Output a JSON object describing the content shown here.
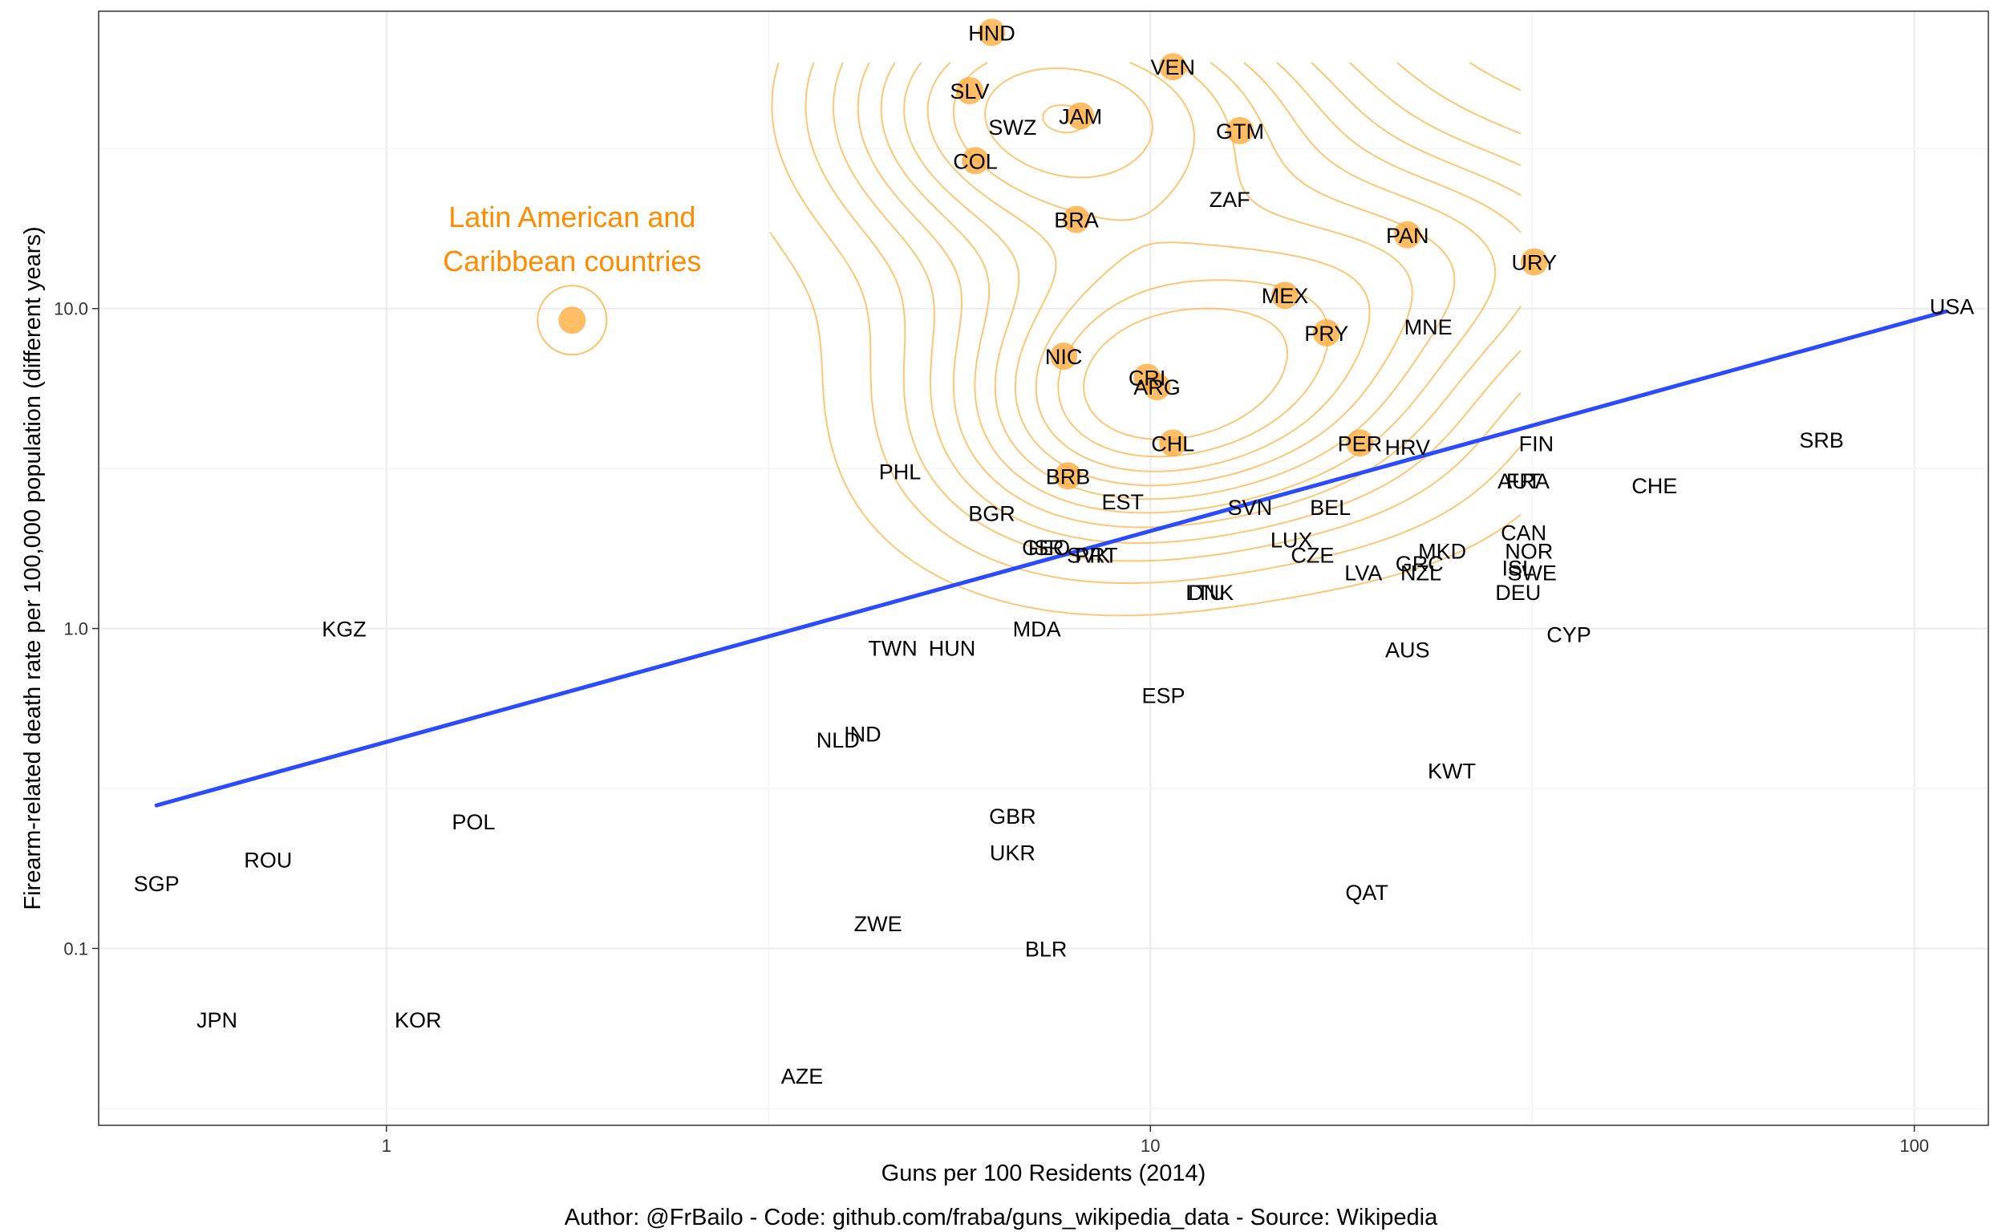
{
  "chart_data": {
    "type": "scatter",
    "xlabel": "Guns per 100 Residents (2014)",
    "ylabel": "Firearm-related death rate per 100,000 population (different years)",
    "caption": "Author: @FrBailo - Code: github.com/fraba/guns_wikipedia_data - Source: Wikipedia",
    "x_scale": "log",
    "y_scale": "log",
    "xlim": [
      0.42,
      125
    ],
    "ylim": [
      0.028,
      85
    ],
    "x_ticks": [
      {
        "value": 1,
        "label": "1"
      },
      {
        "value": 10,
        "label": "10"
      },
      {
        "value": 100,
        "label": "100"
      }
    ],
    "y_ticks": [
      {
        "value": 0.1,
        "label": "0.1"
      },
      {
        "value": 1,
        "label": "1.0"
      },
      {
        "value": 10,
        "label": "10.0"
      }
    ],
    "grid": true,
    "annotation": {
      "lines": [
        "Latin American and",
        "Caribbean countries"
      ],
      "marker_x": 1.75,
      "marker_y": 9.2
    },
    "regression_line": {
      "x": [
        0.5,
        110
      ],
      "y": [
        0.28,
        9.8
      ]
    },
    "colors": {
      "highlight": "#ffa733",
      "contour": "#ffb347",
      "annotation": "#ff8c00",
      "trend": "#2b4bff",
      "text": "#000000"
    },
    "countries": [
      {
        "code": "HND",
        "x": 6.2,
        "y": 73,
        "latam": true
      },
      {
        "code": "VEN",
        "x": 10.7,
        "y": 57,
        "latam": true
      },
      {
        "code": "SLV",
        "x": 5.8,
        "y": 48,
        "latam": true
      },
      {
        "code": "JAM",
        "x": 8.1,
        "y": 40,
        "latam": true
      },
      {
        "code": "SWZ",
        "x": 6.6,
        "y": 37
      },
      {
        "code": "GTM",
        "x": 13.1,
        "y": 36,
        "latam": true
      },
      {
        "code": "COL",
        "x": 5.9,
        "y": 29,
        "latam": true
      },
      {
        "code": "ZAF",
        "x": 12.7,
        "y": 22
      },
      {
        "code": "BRA",
        "x": 8.0,
        "y": 19,
        "latam": true
      },
      {
        "code": "PAN",
        "x": 21.7,
        "y": 17,
        "latam": true
      },
      {
        "code": "URY",
        "x": 31.8,
        "y": 14,
        "latam": true
      },
      {
        "code": "MEX",
        "x": 15.0,
        "y": 11,
        "latam": true
      },
      {
        "code": "USA",
        "x": 112,
        "y": 10.2
      },
      {
        "code": "PRY",
        "x": 17.0,
        "y": 8.4,
        "latam": true
      },
      {
        "code": "MNE",
        "x": 23.1,
        "y": 8.8
      },
      {
        "code": "NIC",
        "x": 7.7,
        "y": 7.1,
        "latam": true
      },
      {
        "code": "CRI",
        "x": 9.9,
        "y": 6.1,
        "latam": true
      },
      {
        "code": "ARG",
        "x": 10.2,
        "y": 5.7,
        "latam": true
      },
      {
        "code": "CHL",
        "x": 10.7,
        "y": 3.8,
        "latam": true
      },
      {
        "code": "PER",
        "x": 18.8,
        "y": 3.8,
        "latam": true
      },
      {
        "code": "HRV",
        "x": 21.7,
        "y": 3.7
      },
      {
        "code": "FIN",
        "x": 32.0,
        "y": 3.8
      },
      {
        "code": "SRB",
        "x": 75.6,
        "y": 3.9
      },
      {
        "code": "PHL",
        "x": 4.7,
        "y": 3.1
      },
      {
        "code": "BRB",
        "x": 7.8,
        "y": 3.0,
        "latam": true
      },
      {
        "code": "AUT",
        "x": 30.4,
        "y": 2.9
      },
      {
        "code": "FRA",
        "x": 31.2,
        "y": 2.9
      },
      {
        "code": "CHE",
        "x": 45.7,
        "y": 2.8
      },
      {
        "code": "EST",
        "x": 9.2,
        "y": 2.5
      },
      {
        "code": "SVN",
        "x": 13.5,
        "y": 2.4
      },
      {
        "code": "BEL",
        "x": 17.2,
        "y": 2.4
      },
      {
        "code": "BGR",
        "x": 6.2,
        "y": 2.3
      },
      {
        "code": "CAN",
        "x": 30.8,
        "y": 2.0
      },
      {
        "code": "LUX",
        "x": 15.3,
        "y": 1.9
      },
      {
        "code": "CZE",
        "x": 16.3,
        "y": 1.7
      },
      {
        "code": "MKD",
        "x": 24.1,
        "y": 1.75
      },
      {
        "code": "NOR",
        "x": 31.3,
        "y": 1.75
      },
      {
        "code": "GEO",
        "x": 7.3,
        "y": 1.8
      },
      {
        "code": "ISR",
        "x": 7.3,
        "y": 1.8
      },
      {
        "code": "SVK",
        "x": 8.3,
        "y": 1.7
      },
      {
        "code": "PRT",
        "x": 8.5,
        "y": 1.7
      },
      {
        "code": "GRC",
        "x": 22.5,
        "y": 1.6
      },
      {
        "code": "ISL",
        "x": 30.3,
        "y": 1.55
      },
      {
        "code": "SWE",
        "x": 31.6,
        "y": 1.5
      },
      {
        "code": "LVA",
        "x": 19.0,
        "y": 1.5
      },
      {
        "code": "NZL",
        "x": 22.6,
        "y": 1.5
      },
      {
        "code": "DNK",
        "x": 12.0,
        "y": 1.3
      },
      {
        "code": "LTU",
        "x": 11.8,
        "y": 1.3
      },
      {
        "code": "DEU",
        "x": 30.3,
        "y": 1.3
      },
      {
        "code": "KGZ",
        "x": 0.88,
        "y": 1.0
      },
      {
        "code": "MDA",
        "x": 7.1,
        "y": 1.0
      },
      {
        "code": "CYP",
        "x": 35.3,
        "y": 0.96
      },
      {
        "code": "TWN",
        "x": 4.6,
        "y": 0.87
      },
      {
        "code": "HUN",
        "x": 5.5,
        "y": 0.87
      },
      {
        "code": "AUS",
        "x": 21.7,
        "y": 0.86
      },
      {
        "code": "ESP",
        "x": 10.4,
        "y": 0.62
      },
      {
        "code": "IND",
        "x": 4.2,
        "y": 0.47
      },
      {
        "code": "NLD",
        "x": 3.9,
        "y": 0.45
      },
      {
        "code": "KWT",
        "x": 24.8,
        "y": 0.36
      },
      {
        "code": "POL",
        "x": 1.3,
        "y": 0.25
      },
      {
        "code": "GBR",
        "x": 6.6,
        "y": 0.26
      },
      {
        "code": "UKR",
        "x": 6.6,
        "y": 0.2
      },
      {
        "code": "ROU",
        "x": 0.7,
        "y": 0.19
      },
      {
        "code": "SGP",
        "x": 0.5,
        "y": 0.16
      },
      {
        "code": "QAT",
        "x": 19.2,
        "y": 0.15
      },
      {
        "code": "ZWE",
        "x": 4.4,
        "y": 0.12
      },
      {
        "code": "BLR",
        "x": 7.3,
        "y": 0.1
      },
      {
        "code": "JPN",
        "x": 0.6,
        "y": 0.06
      },
      {
        "code": "KOR",
        "x": 1.1,
        "y": 0.06
      },
      {
        "code": "AZE",
        "x": 3.5,
        "y": 0.04
      }
    ]
  }
}
